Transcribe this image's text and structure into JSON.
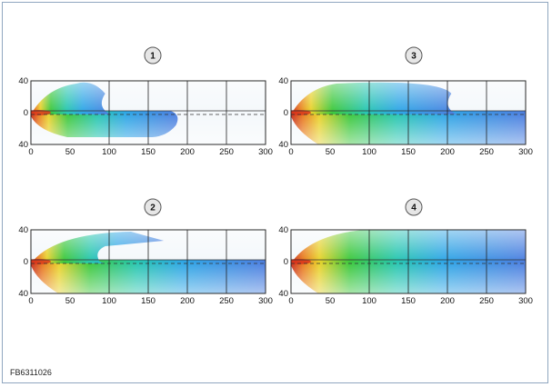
{
  "figure_code": "FB6311026",
  "y_tick_labels": [
    "40",
    "0",
    "40"
  ],
  "x_tick_labels": [
    "0",
    "50",
    "100",
    "150",
    "200",
    "250",
    "300"
  ],
  "panels": [
    {
      "badge": "1",
      "top_reach": 95,
      "top_mode": "plume",
      "bottom_reach": 190
    },
    {
      "badge": "3",
      "top_reach": 205,
      "top_mode": "plume",
      "bottom_reach": 300
    },
    {
      "badge": "2",
      "top_reach": 170,
      "top_mode": "notch",
      "bottom_reach": 300
    },
    {
      "badge": "4",
      "top_reach": 300,
      "top_mode": "full",
      "bottom_reach": 300
    }
  ],
  "colors": {
    "frame_border": "#8fa6bf",
    "plot_bg": "#f4f8fb",
    "badge_fill": "#e6e6e6",
    "field_hot": "#d9351c",
    "field_mid": "#2fbf3a",
    "field_cool": "#3f8ee0"
  }
}
